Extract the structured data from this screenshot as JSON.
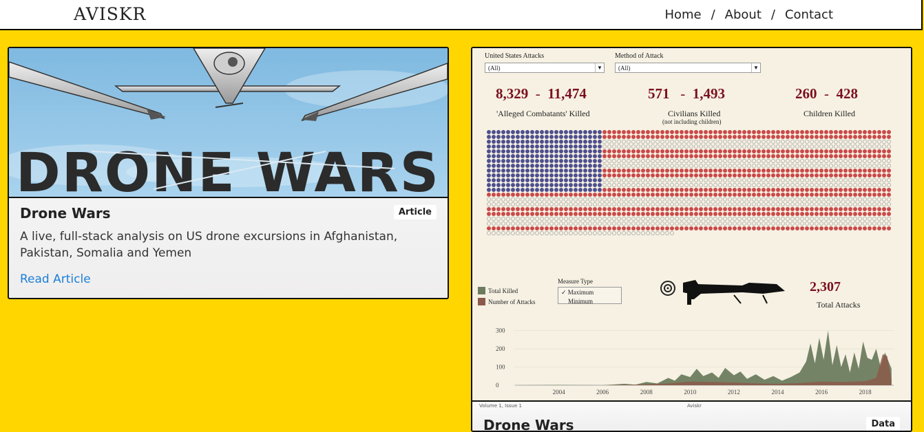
{
  "header": {
    "logo": "AVISKR",
    "nav": [
      {
        "label": "Home"
      },
      {
        "label": "About"
      },
      {
        "label": "Contact"
      }
    ],
    "separator": "/"
  },
  "cards": [
    {
      "hero_text": "DRONE WARS",
      "title": "Drone Wars",
      "badge": "Article",
      "description": "A live, full-stack analysis on US drone excursions in Afghanistan, Pakistan, Somalia and Yemen",
      "link": "Read Article"
    },
    {
      "title": "Drone Wars",
      "badge": "Data",
      "footer_left": "Volume 1, Issue 1",
      "footer_center": "Aviskr"
    }
  ],
  "dashboard": {
    "filters": [
      {
        "label": "United States Attacks",
        "value": "(All)"
      },
      {
        "label": "Method of Attack",
        "value": "(All)"
      }
    ],
    "stats": [
      {
        "low": "8,329",
        "high": "11,474",
        "label": "'Alleged Combatants' Killed",
        "sub": ""
      },
      {
        "low": "571",
        "high": "1,493",
        "label": "Civilians Killed",
        "sub": "(not including children)"
      },
      {
        "low": "260",
        "high": "428",
        "label": "Children Killed",
        "sub": ""
      }
    ],
    "dash_sep": "-",
    "legend": [
      "Total Killed",
      "Number of Attacks"
    ],
    "measure": {
      "label": "Measure Type",
      "options": [
        "✓ Maximum",
        "Minimum"
      ]
    },
    "total_attacks": {
      "value": "2,307",
      "label": "Total Attacks"
    },
    "colors": {
      "blue": "#4d4f8e",
      "red": "#c94a4a",
      "killed": "#6d7c5e",
      "attacks": "#8c5a4a"
    }
  },
  "chart_data": {
    "type": "area",
    "x_ticks": [
      "2004",
      "2006",
      "2008",
      "2010",
      "2012",
      "2014",
      "2016",
      "2018"
    ],
    "y_ticks": [
      "300",
      "200",
      "100",
      "0"
    ],
    "ylim": [
      0,
      340
    ],
    "series": [
      {
        "name": "Total Killed",
        "x": [
          2002.0,
          2004.0,
          2006.0,
          2007.0,
          2007.5,
          2008.0,
          2008.5,
          2009.0,
          2009.3,
          2009.6,
          2010.0,
          2010.3,
          2010.6,
          2011.0,
          2011.3,
          2011.6,
          2012.0,
          2012.3,
          2012.6,
          2013.0,
          2013.4,
          2013.8,
          2014.2,
          2014.6,
          2015.0,
          2015.3,
          2015.5,
          2015.7,
          2015.9,
          2016.1,
          2016.3,
          2016.5,
          2016.7,
          2016.9,
          2017.1,
          2017.3,
          2017.5,
          2017.7,
          2017.9,
          2018.1,
          2018.3,
          2018.5,
          2018.7,
          2018.9,
          2019.2
        ],
        "values": [
          0,
          2,
          0,
          8,
          3,
          18,
          10,
          40,
          25,
          60,
          45,
          90,
          50,
          70,
          40,
          95,
          55,
          75,
          35,
          60,
          30,
          50,
          25,
          45,
          70,
          130,
          230,
          120,
          260,
          140,
          300,
          110,
          220,
          100,
          170,
          70,
          180,
          90,
          240,
          150,
          140,
          200,
          100,
          180,
          90
        ]
      },
      {
        "name": "Number of Attacks",
        "x": [
          2002.0,
          2006.0,
          2008.0,
          2009.0,
          2010.0,
          2011.0,
          2012.0,
          2013.0,
          2014.0,
          2015.0,
          2016.0,
          2017.0,
          2018.0,
          2018.5,
          2018.8,
          2019.0,
          2019.2
        ],
        "values": [
          0,
          0,
          5,
          10,
          20,
          18,
          15,
          10,
          8,
          12,
          20,
          18,
          22,
          40,
          170,
          160,
          30
        ]
      }
    ]
  }
}
